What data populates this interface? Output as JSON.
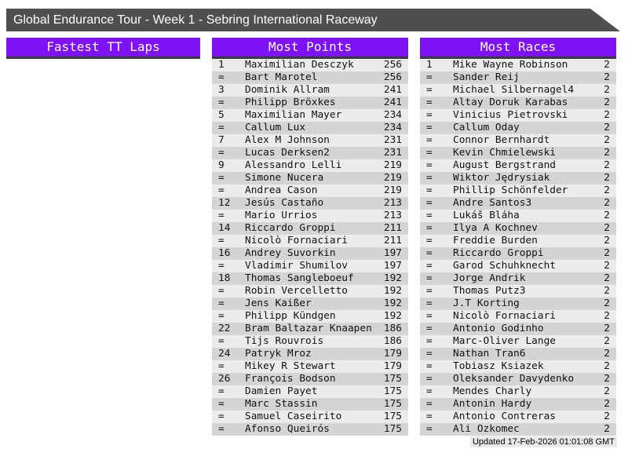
{
  "titlebar": {
    "title": "Global Endurance Tour - Week 1 - Sebring International Raceway"
  },
  "footer": {
    "updated": "Updated 17-Feb-2026 01:01:08 GMT"
  },
  "colors": {
    "accent_purple": "#7e12f5",
    "titlebar_bg": "#4f4f4f",
    "header_underline": "#3a3a3a",
    "row_light": "#ebebeb",
    "row_dark": "#d4d4d4",
    "footer_bg": "#e9e9e9"
  },
  "sections": [
    {
      "id": "fastest-tt-laps",
      "title": "Fastest TT Laps",
      "rows": []
    },
    {
      "id": "most-points",
      "title": "Most Points",
      "rows": [
        [
          "1",
          "Maximilian Desczyk",
          "256"
        ],
        [
          "=",
          "Bart Marotel",
          "256"
        ],
        [
          "3",
          "Dominik Allram",
          "241"
        ],
        [
          "=",
          "Philipp Bröxkes",
          "241"
        ],
        [
          "5",
          "Maximilian Mayer",
          "234"
        ],
        [
          "=",
          "Callum Lux",
          "234"
        ],
        [
          "7",
          "Alex M Johnson",
          "231"
        ],
        [
          "=",
          "Lucas Derksen2",
          "231"
        ],
        [
          "9",
          "Alessandro Lelli",
          "219"
        ],
        [
          "=",
          "Simone Nucera",
          "219"
        ],
        [
          "=",
          "Andrea Cason",
          "219"
        ],
        [
          "12",
          "Jesús Castaño",
          "213"
        ],
        [
          "=",
          "Mario Urrios",
          "213"
        ],
        [
          "14",
          "Riccardo Groppi",
          "211"
        ],
        [
          "=",
          "Nicolò Fornaciari",
          "211"
        ],
        [
          "16",
          "Andrey Suvorkin",
          "197"
        ],
        [
          "=",
          "Vladimir Shumilov",
          "197"
        ],
        [
          "18",
          "Thomas Sangleboeuf",
          "192"
        ],
        [
          "=",
          "Robin Vercelletto",
          "192"
        ],
        [
          "=",
          "Jens Kaißer",
          "192"
        ],
        [
          "=",
          "Philipp Kündgen",
          "192"
        ],
        [
          "22",
          "Bram Baltazar Knaapen",
          "186"
        ],
        [
          "=",
          "Tijs Rouvrois",
          "186"
        ],
        [
          "24",
          "Patryk Mroz",
          "179"
        ],
        [
          "=",
          "Mikey R Stewart",
          "179"
        ],
        [
          "26",
          "François Bodson",
          "175"
        ],
        [
          "=",
          "Damien Payet",
          "175"
        ],
        [
          "=",
          "Marc Stassin",
          "175"
        ],
        [
          "=",
          "Samuel Caseirito",
          "175"
        ],
        [
          "=",
          "Afonso Queirós",
          "175"
        ]
      ]
    },
    {
      "id": "most-races",
      "title": "Most Races",
      "rows": [
        [
          "1",
          "Mike Wayne Robinson",
          "2"
        ],
        [
          "=",
          "Sander Reij",
          "2"
        ],
        [
          "=",
          "Michael Silbernagel4",
          "2"
        ],
        [
          "=",
          "Altay Doruk Karabas",
          "2"
        ],
        [
          "=",
          "Vinicius Pietrovski",
          "2"
        ],
        [
          "=",
          "Callum Oday",
          "2"
        ],
        [
          "=",
          "Connor Bernhardt",
          "2"
        ],
        [
          "=",
          "Kevin Chmielewski",
          "2"
        ],
        [
          "=",
          "August Bergstrand",
          "2"
        ],
        [
          "=",
          "Wiktor Jędrysiak",
          "2"
        ],
        [
          "=",
          "Phillip Schönfelder",
          "2"
        ],
        [
          "=",
          "Andre Santos3",
          "2"
        ],
        [
          "=",
          "Lukáš Bláha",
          "2"
        ],
        [
          "=",
          "Ilya A Kochnev",
          "2"
        ],
        [
          "=",
          "Freddie Burden",
          "2"
        ],
        [
          "=",
          "Riccardo Groppi",
          "2"
        ],
        [
          "=",
          "Garod Schuhknecht",
          "2"
        ],
        [
          "=",
          "Jorge Andrik",
          "2"
        ],
        [
          "=",
          "Thomas Putz3",
          "2"
        ],
        [
          "=",
          "J.T Korting",
          "2"
        ],
        [
          "=",
          "Nicolò Fornaciari",
          "2"
        ],
        [
          "=",
          "Antonio Godinho",
          "2"
        ],
        [
          "=",
          "Marc-Oliver Lange",
          "2"
        ],
        [
          "=",
          "Nathan Tran6",
          "2"
        ],
        [
          "=",
          "Tobiasz Ksiazek",
          "2"
        ],
        [
          "=",
          "Oleksander Davydenko",
          "2"
        ],
        [
          "=",
          "Mendes Charly",
          "2"
        ],
        [
          "=",
          "Antonin Hardy",
          "2"
        ],
        [
          "=",
          "Antonio Contreras",
          "2"
        ],
        [
          "=",
          "Ali Ozkomec",
          "2"
        ]
      ]
    }
  ]
}
